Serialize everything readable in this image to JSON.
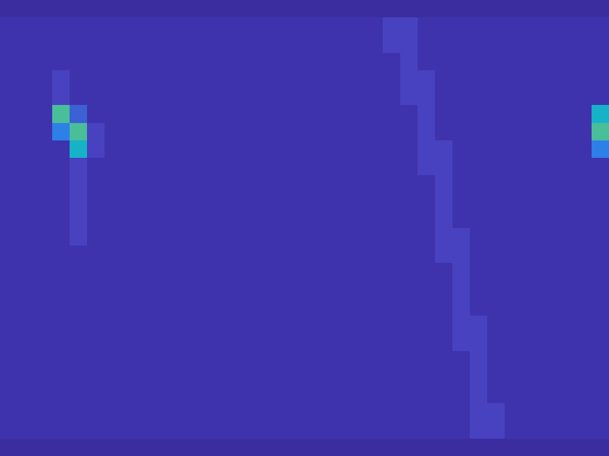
{
  "chart_data": {
    "type": "heatmap",
    "tick_labels": false,
    "zlim": [
      0,
      10
    ],
    "cells": [
      [
        0,
        0,
        0,
        0,
        0,
        0,
        0,
        0,
        0,
        0,
        0,
        0,
        0,
        0,
        0,
        0,
        0,
        0,
        0,
        0,
        0,
        0,
        0,
        0,
        0,
        0,
        0,
        0,
        0,
        0,
        0,
        0,
        0,
        0,
        0
      ],
      [
        1,
        1,
        1,
        1,
        1,
        1,
        1,
        1,
        1,
        1,
        1,
        1,
        1,
        1,
        1,
        1,
        1,
        1,
        1,
        1,
        1,
        1,
        2,
        2,
        1,
        1,
        1,
        1,
        1,
        1,
        1,
        1,
        1,
        1,
        1
      ],
      [
        1,
        1,
        1,
        1,
        1,
        1,
        1,
        1,
        1,
        1,
        1,
        1,
        1,
        1,
        1,
        1,
        1,
        1,
        1,
        1,
        1,
        1,
        2,
        2,
        1,
        1,
        1,
        1,
        1,
        1,
        1,
        1,
        1,
        1,
        1
      ],
      [
        1,
        1,
        1,
        1,
        1,
        1,
        1,
        1,
        1,
        1,
        1,
        1,
        1,
        1,
        1,
        1,
        1,
        1,
        1,
        1,
        1,
        1,
        1,
        2,
        1,
        1,
        1,
        1,
        1,
        1,
        1,
        1,
        1,
        1,
        1
      ],
      [
        1,
        1,
        1,
        2,
        1,
        1,
        1,
        1,
        1,
        1,
        1,
        1,
        1,
        1,
        1,
        1,
        1,
        1,
        1,
        1,
        1,
        1,
        1,
        2,
        2,
        1,
        1,
        1,
        1,
        1,
        1,
        1,
        1,
        1,
        1
      ],
      [
        1,
        1,
        1,
        2,
        1,
        1,
        1,
        1,
        1,
        1,
        1,
        1,
        1,
        1,
        1,
        1,
        1,
        1,
        1,
        1,
        1,
        1,
        1,
        2,
        2,
        1,
        1,
        1,
        1,
        1,
        1,
        1,
        1,
        1,
        1
      ],
      [
        1,
        1,
        1,
        7,
        3,
        1,
        1,
        1,
        1,
        1,
        1,
        1,
        1,
        1,
        1,
        1,
        1,
        1,
        1,
        1,
        1,
        1,
        1,
        1,
        2,
        1,
        1,
        1,
        1,
        1,
        1,
        1,
        1,
        1,
        6
      ],
      [
        1,
        1,
        1,
        4,
        7,
        2,
        1,
        1,
        1,
        1,
        1,
        1,
        1,
        1,
        1,
        1,
        1,
        1,
        1,
        1,
        1,
        1,
        1,
        1,
        2,
        1,
        1,
        1,
        1,
        1,
        1,
        1,
        1,
        1,
        7
      ],
      [
        1,
        1,
        1,
        1,
        6,
        2,
        1,
        1,
        1,
        1,
        1,
        1,
        1,
        1,
        1,
        1,
        1,
        1,
        1,
        1,
        1,
        1,
        1,
        1,
        2,
        2,
        1,
        1,
        1,
        1,
        1,
        1,
        1,
        1,
        4
      ],
      [
        1,
        1,
        1,
        1,
        2,
        1,
        1,
        1,
        1,
        1,
        1,
        1,
        1,
        1,
        1,
        1,
        1,
        1,
        1,
        1,
        1,
        1,
        1,
        1,
        2,
        2,
        1,
        1,
        1,
        1,
        1,
        1,
        1,
        1,
        1
      ],
      [
        1,
        1,
        1,
        1,
        2,
        1,
        1,
        1,
        1,
        1,
        1,
        1,
        1,
        1,
        1,
        1,
        1,
        1,
        1,
        1,
        1,
        1,
        1,
        1,
        1,
        2,
        1,
        1,
        1,
        1,
        1,
        1,
        1,
        1,
        1
      ],
      [
        1,
        1,
        1,
        1,
        2,
        1,
        1,
        1,
        1,
        1,
        1,
        1,
        1,
        1,
        1,
        1,
        1,
        1,
        1,
        1,
        1,
        1,
        1,
        1,
        1,
        2,
        1,
        1,
        1,
        1,
        1,
        1,
        1,
        1,
        1
      ],
      [
        1,
        1,
        1,
        1,
        2,
        1,
        1,
        1,
        1,
        1,
        1,
        1,
        1,
        1,
        1,
        1,
        1,
        1,
        1,
        1,
        1,
        1,
        1,
        1,
        1,
        2,
        1,
        1,
        1,
        1,
        1,
        1,
        1,
        1,
        1
      ],
      [
        1,
        1,
        1,
        1,
        2,
        1,
        1,
        1,
        1,
        1,
        1,
        1,
        1,
        1,
        1,
        1,
        1,
        1,
        1,
        1,
        1,
        1,
        1,
        1,
        1,
        2,
        2,
        1,
        1,
        1,
        1,
        1,
        1,
        1,
        1
      ],
      [
        1,
        1,
        1,
        1,
        1,
        1,
        1,
        1,
        1,
        1,
        1,
        1,
        1,
        1,
        1,
        1,
        1,
        1,
        1,
        1,
        1,
        1,
        1,
        1,
        1,
        2,
        2,
        1,
        1,
        1,
        1,
        1,
        1,
        1,
        1
      ],
      [
        1,
        1,
        1,
        1,
        1,
        1,
        1,
        1,
        1,
        1,
        1,
        1,
        1,
        1,
        1,
        1,
        1,
        1,
        1,
        1,
        1,
        1,
        1,
        1,
        1,
        1,
        2,
        1,
        1,
        1,
        1,
        1,
        1,
        1,
        1
      ],
      [
        1,
        1,
        1,
        1,
        1,
        1,
        1,
        1,
        1,
        1,
        1,
        1,
        1,
        1,
        1,
        1,
        1,
        1,
        1,
        1,
        1,
        1,
        1,
        1,
        1,
        1,
        2,
        1,
        1,
        1,
        1,
        1,
        1,
        1,
        1
      ],
      [
        1,
        1,
        1,
        1,
        1,
        1,
        1,
        1,
        1,
        1,
        1,
        1,
        1,
        1,
        1,
        1,
        1,
        1,
        1,
        1,
        1,
        1,
        1,
        1,
        1,
        1,
        2,
        1,
        1,
        1,
        1,
        1,
        1,
        1,
        1
      ],
      [
        1,
        1,
        1,
        1,
        1,
        1,
        1,
        1,
        1,
        1,
        1,
        1,
        1,
        1,
        1,
        1,
        1,
        1,
        1,
        1,
        1,
        1,
        1,
        1,
        1,
        1,
        2,
        2,
        1,
        1,
        1,
        1,
        1,
        1,
        1
      ],
      [
        1,
        1,
        1,
        1,
        1,
        1,
        1,
        1,
        1,
        1,
        1,
        1,
        1,
        1,
        1,
        1,
        1,
        1,
        1,
        1,
        1,
        1,
        1,
        1,
        1,
        1,
        2,
        2,
        1,
        1,
        1,
        1,
        1,
        1,
        1
      ],
      [
        1,
        1,
        1,
        1,
        1,
        1,
        1,
        1,
        1,
        1,
        1,
        1,
        1,
        1,
        1,
        1,
        1,
        1,
        1,
        1,
        1,
        1,
        1,
        1,
        1,
        1,
        1,
        2,
        1,
        1,
        1,
        1,
        1,
        1,
        1
      ],
      [
        1,
        1,
        1,
        1,
        1,
        1,
        1,
        1,
        1,
        1,
        1,
        1,
        1,
        1,
        1,
        1,
        1,
        1,
        1,
        1,
        1,
        1,
        1,
        1,
        1,
        1,
        1,
        2,
        1,
        1,
        1,
        1,
        1,
        1,
        1
      ],
      [
        1,
        1,
        1,
        1,
        1,
        1,
        1,
        1,
        1,
        1,
        1,
        1,
        1,
        1,
        1,
        1,
        1,
        1,
        1,
        1,
        1,
        1,
        1,
        1,
        1,
        1,
        1,
        2,
        1,
        1,
        1,
        1,
        1,
        1,
        1
      ],
      [
        1,
        1,
        1,
        1,
        1,
        1,
        1,
        1,
        1,
        1,
        1,
        1,
        1,
        1,
        1,
        1,
        1,
        1,
        1,
        1,
        1,
        1,
        1,
        1,
        1,
        1,
        1,
        2,
        2,
        1,
        1,
        1,
        1,
        1,
        1
      ],
      [
        1,
        1,
        1,
        1,
        1,
        1,
        1,
        1,
        1,
        1,
        1,
        1,
        1,
        1,
        1,
        1,
        1,
        1,
        1,
        1,
        1,
        1,
        1,
        1,
        1,
        1,
        1,
        2,
        2,
        1,
        1,
        1,
        1,
        1,
        1
      ],
      [
        0,
        0,
        0,
        0,
        0,
        0,
        0,
        0,
        0,
        0,
        0,
        0,
        0,
        0,
        0,
        0,
        0,
        0,
        0,
        0,
        0,
        0,
        0,
        0,
        0,
        0,
        0,
        0,
        0,
        0,
        0,
        0,
        0,
        0,
        0
      ]
    ]
  }
}
